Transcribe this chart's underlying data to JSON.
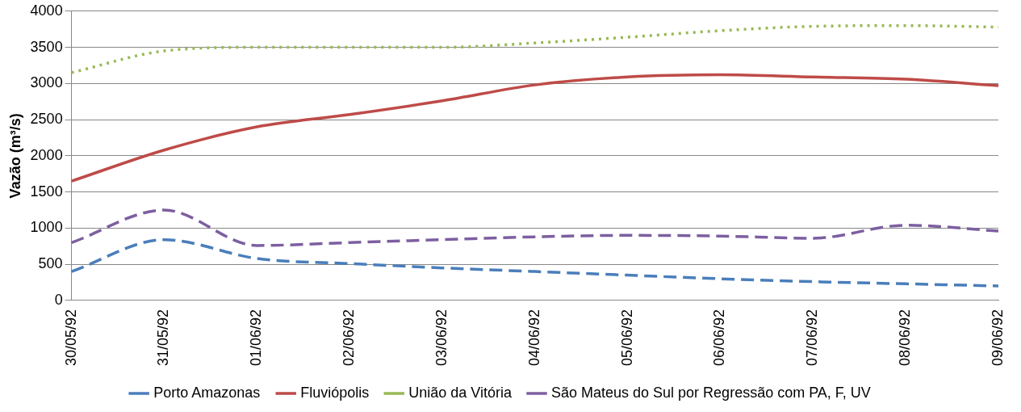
{
  "chart_data": {
    "type": "line",
    "ylabel": "Vazão (m³/s)",
    "categories": [
      "30/05/92",
      "31/05/92",
      "01/06/92",
      "02/06/92",
      "03/06/92",
      "04/06/92",
      "05/06/92",
      "06/06/92",
      "07/06/92",
      "08/06/92",
      "09/06/92"
    ],
    "series": [
      {
        "name": "Porto Amazonas",
        "color": "#4a7ebb",
        "line_style": "dashed",
        "values": [
          400,
          840,
          580,
          510,
          450,
          400,
          350,
          300,
          260,
          230,
          200
        ]
      },
      {
        "name": "Fluviópolis",
        "color": "#be4b48",
        "line_style": "solid",
        "values": [
          1650,
          2080,
          2400,
          2570,
          2760,
          2980,
          3090,
          3120,
          3090,
          3060,
          2970
        ]
      },
      {
        "name": "União da Vitória",
        "color": "#98b954",
        "line_style": "dotted",
        "values": [
          3150,
          3450,
          3500,
          3500,
          3500,
          3560,
          3640,
          3730,
          3790,
          3800,
          3780
        ]
      },
      {
        "name": "São Mateus do Sul por Regressão com PA, F, UV",
        "color": "#7d5fa0",
        "line_style": "dashed",
        "values": [
          800,
          1250,
          760,
          800,
          840,
          880,
          900,
          890,
          860,
          1040,
          960
        ]
      }
    ],
    "ylim": [
      0,
      4000
    ],
    "yticks": [
      0,
      500,
      1000,
      1500,
      2000,
      2500,
      3000,
      3500,
      4000
    ],
    "grid": "y",
    "legend": "bottom",
    "marker": "none"
  }
}
